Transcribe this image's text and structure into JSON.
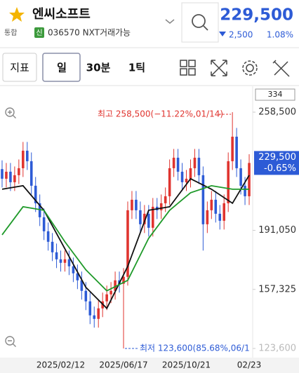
{
  "header": {
    "name": "엔씨소프트",
    "market": "통합",
    "badge": "신",
    "code": "036570 NXT거래가능",
    "price": "229,500",
    "change": "2,500",
    "change_pct": "1.08%"
  },
  "toolbar": {
    "buttons": [
      "지표",
      "일",
      "30분",
      "1틱"
    ]
  },
  "chart_data": {
    "type": "candlestick",
    "count_box": "334",
    "categories": [
      null,
      null,
      null,
      null,
      null,
      null,
      null,
      null,
      null,
      null,
      null,
      null,
      null,
      null,
      "2025/02/12",
      null,
      null,
      null,
      null,
      null,
      null,
      null,
      null,
      null,
      null,
      null,
      null,
      null,
      null,
      "2025/06/17",
      null,
      null,
      null,
      null,
      null,
      null,
      null,
      null,
      null,
      null,
      null,
      null,
      null,
      null,
      "2025/10/21",
      null,
      null,
      null,
      null,
      null,
      null,
      null,
      null,
      null,
      null,
      null,
      null,
      null,
      null,
      "02/23"
    ],
    "open": [
      226000,
      220500,
      224500,
      218500,
      222500,
      226500,
      236500,
      230500,
      216500,
      206500,
      198500,
      190500,
      184500,
      178500,
      174500,
      172500,
      174500,
      170500,
      166500,
      162500,
      156500,
      150500,
      142500,
      140500,
      146500,
      150500,
      154500,
      156500,
      162500,
      160500,
      164500,
      202500,
      208500,
      202500,
      194500,
      200500,
      192500,
      204500,
      202500,
      206500,
      210500,
      226500,
      232500,
      224500,
      218500,
      220500,
      226500,
      232500,
      222500,
      194500,
      202500,
      208500,
      200500,
      196500,
      206500,
      230500,
      244500,
      226500,
      216500,
      210500
    ],
    "high": [
      231000,
      229500,
      229500,
      227500,
      231500,
      241500,
      241500,
      235500,
      221500,
      211500,
      203500,
      195500,
      189500,
      183500,
      179500,
      179500,
      179500,
      175500,
      171500,
      167500,
      161500,
      155500,
      147500,
      151500,
      155500,
      159500,
      161500,
      167500,
      167500,
      169500,
      207500,
      213500,
      213500,
      207500,
      205500,
      205500,
      209500,
      209500,
      211500,
      215500,
      231500,
      237500,
      237500,
      229500,
      225500,
      231500,
      237500,
      237500,
      227500,
      207500,
      213500,
      213500,
      205500,
      211500,
      235500,
      258500,
      249500,
      231500,
      221500,
      234500
    ],
    "low": [
      215500,
      215500,
      213500,
      213500,
      217500,
      221500,
      225500,
      211500,
      201500,
      193500,
      185500,
      179500,
      173500,
      169500,
      167500,
      167500,
      165500,
      161500,
      157500,
      151500,
      145500,
      137500,
      135500,
      135500,
      141500,
      145500,
      149500,
      151500,
      155500,
      123600,
      159500,
      197500,
      197500,
      189500,
      189500,
      187500,
      187500,
      197500,
      197500,
      201500,
      205500,
      221500,
      219500,
      213500,
      213500,
      215500,
      221500,
      217500,
      179500,
      189500,
      197500,
      195500,
      191500,
      191500,
      201500,
      225500,
      221500,
      211500,
      205500,
      205500
    ],
    "close": [
      220500,
      224500,
      218500,
      222500,
      226500,
      236500,
      230500,
      216500,
      206500,
      198500,
      190500,
      184500,
      178500,
      174500,
      172500,
      174500,
      170500,
      166500,
      162500,
      156500,
      150500,
      142500,
      140500,
      146500,
      150500,
      154500,
      156500,
      162500,
      160500,
      164500,
      202500,
      208500,
      202500,
      194500,
      200500,
      192500,
      204500,
      202500,
      206500,
      210500,
      226500,
      232500,
      224500,
      218500,
      220500,
      226500,
      232500,
      222500,
      194500,
      202500,
      208500,
      200500,
      196500,
      206500,
      230500,
      244500,
      226500,
      216500,
      210500,
      229500
    ],
    "up_color": "#e0342f",
    "down_color": "#2d5bd6",
    "series": [
      {
        "color": "#111111",
        "x": [
          0,
          5,
          10,
          15,
          20,
          25,
          30,
          35,
          40,
          45,
          50,
          55,
          59
        ],
        "values": [
          214500,
          216500,
          202500,
          180500,
          158500,
          146500,
          170500,
          202500,
          204500,
          220500,
          214500,
          206500,
          222500
        ]
      },
      {
        "color": "#1f9a2a",
        "x": [
          0,
          5,
          10,
          15,
          20,
          25,
          30,
          35,
          40,
          45,
          50,
          55,
          59
        ],
        "values": [
          188500,
          204500,
          202500,
          184500,
          168500,
          156500,
          162500,
          186500,
          202500,
          212500,
          216500,
          214500,
          214500
        ]
      }
    ],
    "xlim": [
      -0.5,
      59.5
    ],
    "ylim": [
      118400,
      272500
    ],
    "yticks": [
      {
        "value": 258500,
        "label": "258,500"
      },
      {
        "value": 191050,
        "label": "191,050"
      },
      {
        "value": 157325,
        "label": "157,325"
      },
      {
        "value": 123600,
        "label": "123,600"
      }
    ],
    "last_price": {
      "value": 229500,
      "label": "229,500"
    },
    "last_change": "-0.65%",
    "annotations": [
      {
        "value": 258500,
        "text": "최고 258,500(−11.22%,01/14)",
        "color": "#e0342f",
        "index": 55
      },
      {
        "value": 123600,
        "text": "최저 123,600(85.68%,06/1",
        "color": "#2d5bd6",
        "index": 29
      }
    ]
  }
}
